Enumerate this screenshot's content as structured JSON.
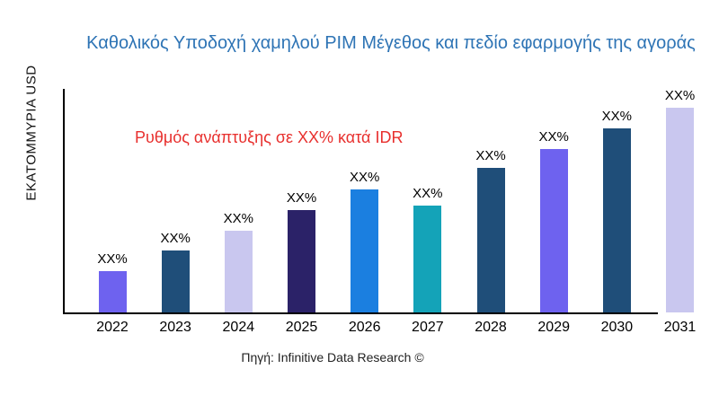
{
  "header": {
    "title": "Καθολικός Υποδοχή χαμηλού PIM Μέγεθος και πεδίο εφαρμογής της αγοράς",
    "title_color": "#2e74b5"
  },
  "y_axis": {
    "label": "ΕΚΑΤΟΜΜΥΡΙΑ USD"
  },
  "annotation": {
    "text": "Ρυθμός ανάπτυξης σε XX% κατά IDR",
    "color": "#e8302e"
  },
  "footer": {
    "source": "Πηγή: Infinitive Data Research ©"
  },
  "chart_data": {
    "type": "bar",
    "title": "Καθολικός Υποδοχή χαμηλού PIM Μέγεθος και πεδίο εφαρμογής της αγοράς",
    "xlabel": "",
    "ylabel": "ΕΚΑΤΟΜΜΥΡΙΑ USD",
    "categories": [
      "2022",
      "2023",
      "2024",
      "2025",
      "2026",
      "2027",
      "2028",
      "2029",
      "2030",
      "2031"
    ],
    "values": [
      46,
      69,
      91,
      114,
      137,
      119,
      161,
      182,
      205,
      228
    ],
    "values_note": "relative bar heights in plot units; numeric axis not labeled in source chart",
    "bar_labels": [
      "XX%",
      "XX%",
      "XX%",
      "XX%",
      "XX%",
      "XX%",
      "XX%",
      "XX%",
      "XX%",
      "XX%"
    ],
    "colors": [
      "#6e62ef",
      "#1f4e79",
      "#c9c7ef",
      "#2b2268",
      "#1b7fe0",
      "#14a3b8",
      "#1f4e79",
      "#6e62ef",
      "#1f4e79",
      "#c9c7ef"
    ],
    "ylim": [
      0,
      251
    ],
    "grid": false,
    "legend": false,
    "annotation": "Ρυθμός ανάπτυξης σε XX% κατά IDR"
  }
}
